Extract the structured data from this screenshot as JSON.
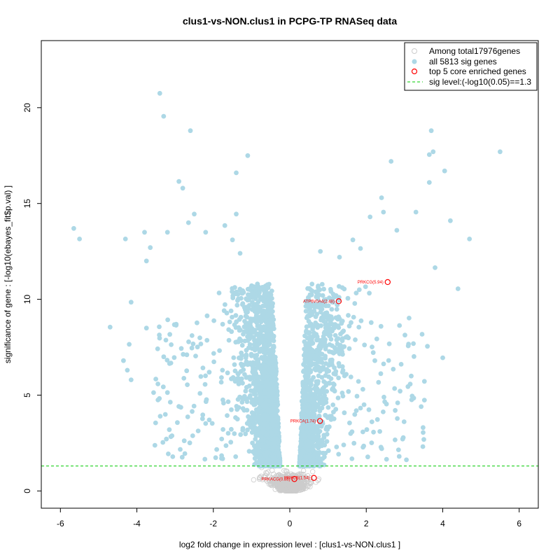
{
  "chart_data": {
    "type": "scatter",
    "title": "clus1-vs-NON.clus1 in PCPG-TP RNASeq data",
    "xlabel": "log2 fold change in expression level : [clus1-vs-NON.clus1 ]",
    "ylabel": "significance of gene : [-log10(ebayes_fit$p.val) ]",
    "xlim": [
      -6.5,
      6.5
    ],
    "ylim": [
      -0.9,
      23.5
    ],
    "xticks": [
      -6,
      -4,
      -2,
      0,
      2,
      4,
      6
    ],
    "yticks": [
      0,
      5,
      10,
      15,
      20
    ],
    "sig_level": 1.3,
    "colors": {
      "nonsig": "#cccccc",
      "sig": "#add8e6",
      "core": "#ff0000",
      "sigline": "#00cc00"
    },
    "legend": {
      "position": "top-right",
      "entries": [
        {
          "label": "Among total17976genes",
          "marker": "open-circle-gray"
        },
        {
          "label": "all 5813 sig genes",
          "marker": "filled-circle-lightblue"
        },
        {
          "label": "top 5 core enriched genes",
          "marker": "open-circle-red"
        },
        {
          "label": "sig level:(-log10(0.05)==1.3",
          "marker": "dashed-line-green"
        }
      ]
    },
    "core_genes": [
      {
        "label": "PRKCG(5.94)",
        "x": 2.56,
        "y": 10.9
      },
      {
        "label": "ATP6V0A4(2.48)",
        "x": 1.28,
        "y": 9.9
      },
      {
        "label": "PRKCA(1.74)",
        "x": 0.79,
        "y": 3.65
      },
      {
        "label": "PRKCB(1.54)",
        "x": 0.63,
        "y": 0.68
      },
      {
        "label": "PRKACG(0.88)",
        "x": 0.12,
        "y": 0.62
      }
    ],
    "labeled_points_sig": [
      {
        "x": -5.65,
        "y": 13.7
      },
      {
        "x": -5.5,
        "y": 13.15
      },
      {
        "x": -4.7,
        "y": 8.55
      },
      {
        "x": -4.3,
        "y": 13.15
      },
      {
        "x": -4.15,
        "y": 9.85
      },
      {
        "x": -4.2,
        "y": 7.65
      },
      {
        "x": -4.35,
        "y": 6.8
      },
      {
        "x": -4.25,
        "y": 6.3
      },
      {
        "x": -4.15,
        "y": 5.8
      },
      {
        "x": -3.8,
        "y": 13.5
      },
      {
        "x": -3.65,
        "y": 12.7
      },
      {
        "x": -3.75,
        "y": 12.0
      },
      {
        "x": -3.75,
        "y": 8.5
      },
      {
        "x": -3.4,
        "y": 20.75
      },
      {
        "x": -3.3,
        "y": 19.55
      },
      {
        "x": -3.2,
        "y": 13.5
      },
      {
        "x": -2.9,
        "y": 16.15
      },
      {
        "x": -2.8,
        "y": 15.8
      },
      {
        "x": -2.6,
        "y": 18.8
      },
      {
        "x": -2.65,
        "y": 14.0
      },
      {
        "x": -2.5,
        "y": 14.45
      },
      {
        "x": -2.2,
        "y": 13.5
      },
      {
        "x": -1.7,
        "y": 13.85
      },
      {
        "x": -1.4,
        "y": 16.6
      },
      {
        "x": -1.4,
        "y": 14.45
      },
      {
        "x": -1.1,
        "y": 17.5
      },
      {
        "x": -1.3,
        "y": 12.4
      },
      {
        "x": -1.5,
        "y": 13.1
      },
      {
        "x": 3.7,
        "y": 18.8
      },
      {
        "x": 3.65,
        "y": 17.55
      },
      {
        "x": 3.75,
        "y": 17.7
      },
      {
        "x": 5.5,
        "y": 17.7
      },
      {
        "x": 4.05,
        "y": 16.7
      },
      {
        "x": 3.65,
        "y": 16.1
      },
      {
        "x": 2.4,
        "y": 15.3
      },
      {
        "x": 2.45,
        "y": 14.55
      },
      {
        "x": 3.3,
        "y": 14.55
      },
      {
        "x": 4.2,
        "y": 14.1
      },
      {
        "x": 2.65,
        "y": 17.2
      },
      {
        "x": 2.1,
        "y": 14.3
      },
      {
        "x": 2.8,
        "y": 13.6
      },
      {
        "x": 4.7,
        "y": 13.15
      },
      {
        "x": 3.8,
        "y": 11.65
      },
      {
        "x": 4.4,
        "y": 10.55
      },
      {
        "x": 3.6,
        "y": 7.55
      },
      {
        "x": 4.0,
        "y": 6.95
      },
      {
        "x": 3.2,
        "y": 4.95
      },
      {
        "x": 0.8,
        "y": 12.5
      },
      {
        "x": 1.3,
        "y": 12.2
      },
      {
        "x": 1.65,
        "y": 13.1
      },
      {
        "x": 1.85,
        "y": 12.65
      }
    ]
  }
}
